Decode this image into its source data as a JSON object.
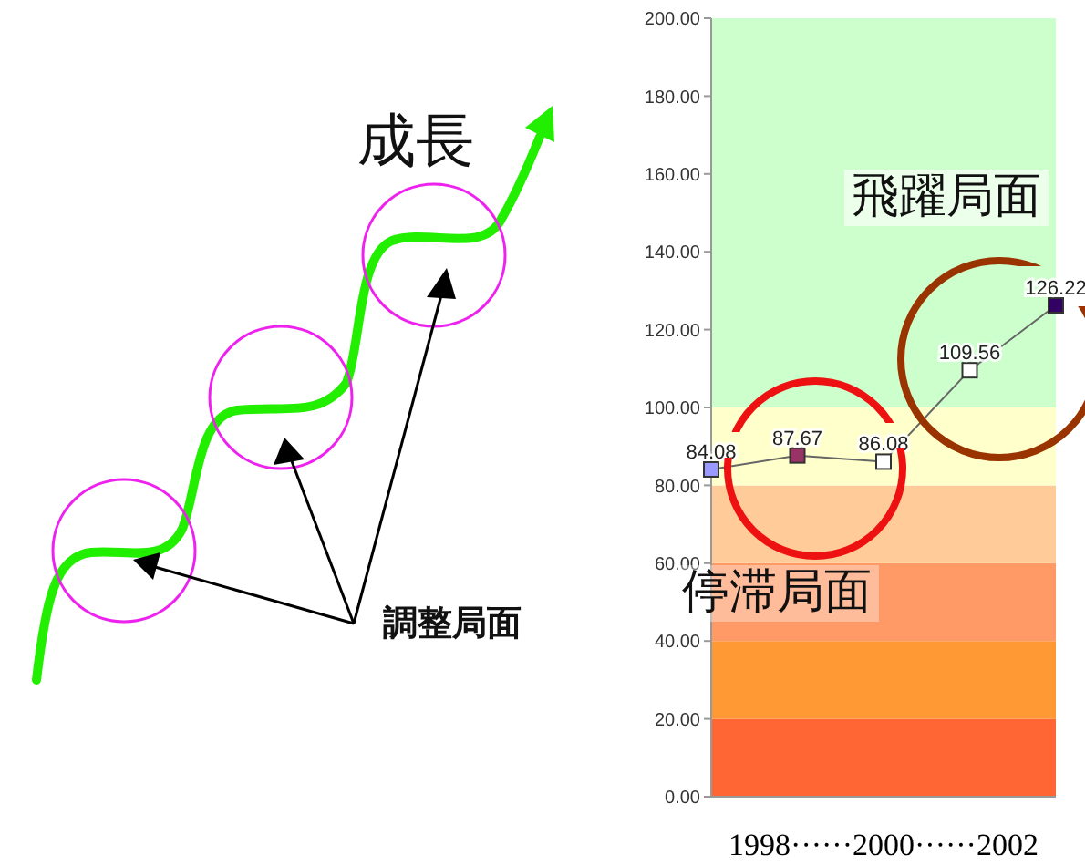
{
  "chart_data": {
    "type": "line",
    "categories": [
      null,
      null,
      null,
      null,
      null
    ],
    "xlabel": "1998······2000······2002",
    "series": [
      {
        "color": "#666666",
        "values": [
          84.08,
          87.67,
          86.08,
          109.56,
          126.22
        ]
      }
    ],
    "colors": [
      "#9999ff",
      "#993366",
      "#ffffff",
      "#ffffff",
      "#330066"
    ],
    "marker": "square",
    "data_labels": true,
    "ylim": [
      0,
      200
    ],
    "yticks": [
      {
        "value": 0,
        "label": "0.00"
      },
      {
        "value": 20,
        "label": "20.00"
      },
      {
        "value": 40,
        "label": "40.00"
      },
      {
        "value": 60,
        "label": "60.00"
      },
      {
        "value": 80,
        "label": "80.00"
      },
      {
        "value": 100,
        "label": "100.00"
      },
      {
        "value": 120,
        "label": "120.00"
      },
      {
        "value": 140,
        "label": "140.00"
      },
      {
        "value": 160,
        "label": "160.00"
      },
      {
        "value": 180,
        "label": "180.00"
      },
      {
        "value": 200,
        "label": "200.00"
      }
    ],
    "bands": [
      {
        "axis": "y",
        "from": 0,
        "to": 20,
        "color": "#ff6633"
      },
      {
        "axis": "y",
        "from": 20,
        "to": 40,
        "color": "#ff9933"
      },
      {
        "axis": "y",
        "from": 40,
        "to": 60,
        "color": "#ff9966"
      },
      {
        "axis": "y",
        "from": 60,
        "to": 80,
        "color": "#ffcc99"
      },
      {
        "axis": "y",
        "from": 80,
        "to": 100,
        "color": "#ffffcc"
      },
      {
        "axis": "y",
        "from": 100,
        "to": 200,
        "color": "#ccffcc"
      }
    ],
    "annotations": [
      "飛躍局面",
      "停滞局面",
      "成長",
      "調整局面"
    ],
    "grid": false,
    "legend": false
  }
}
